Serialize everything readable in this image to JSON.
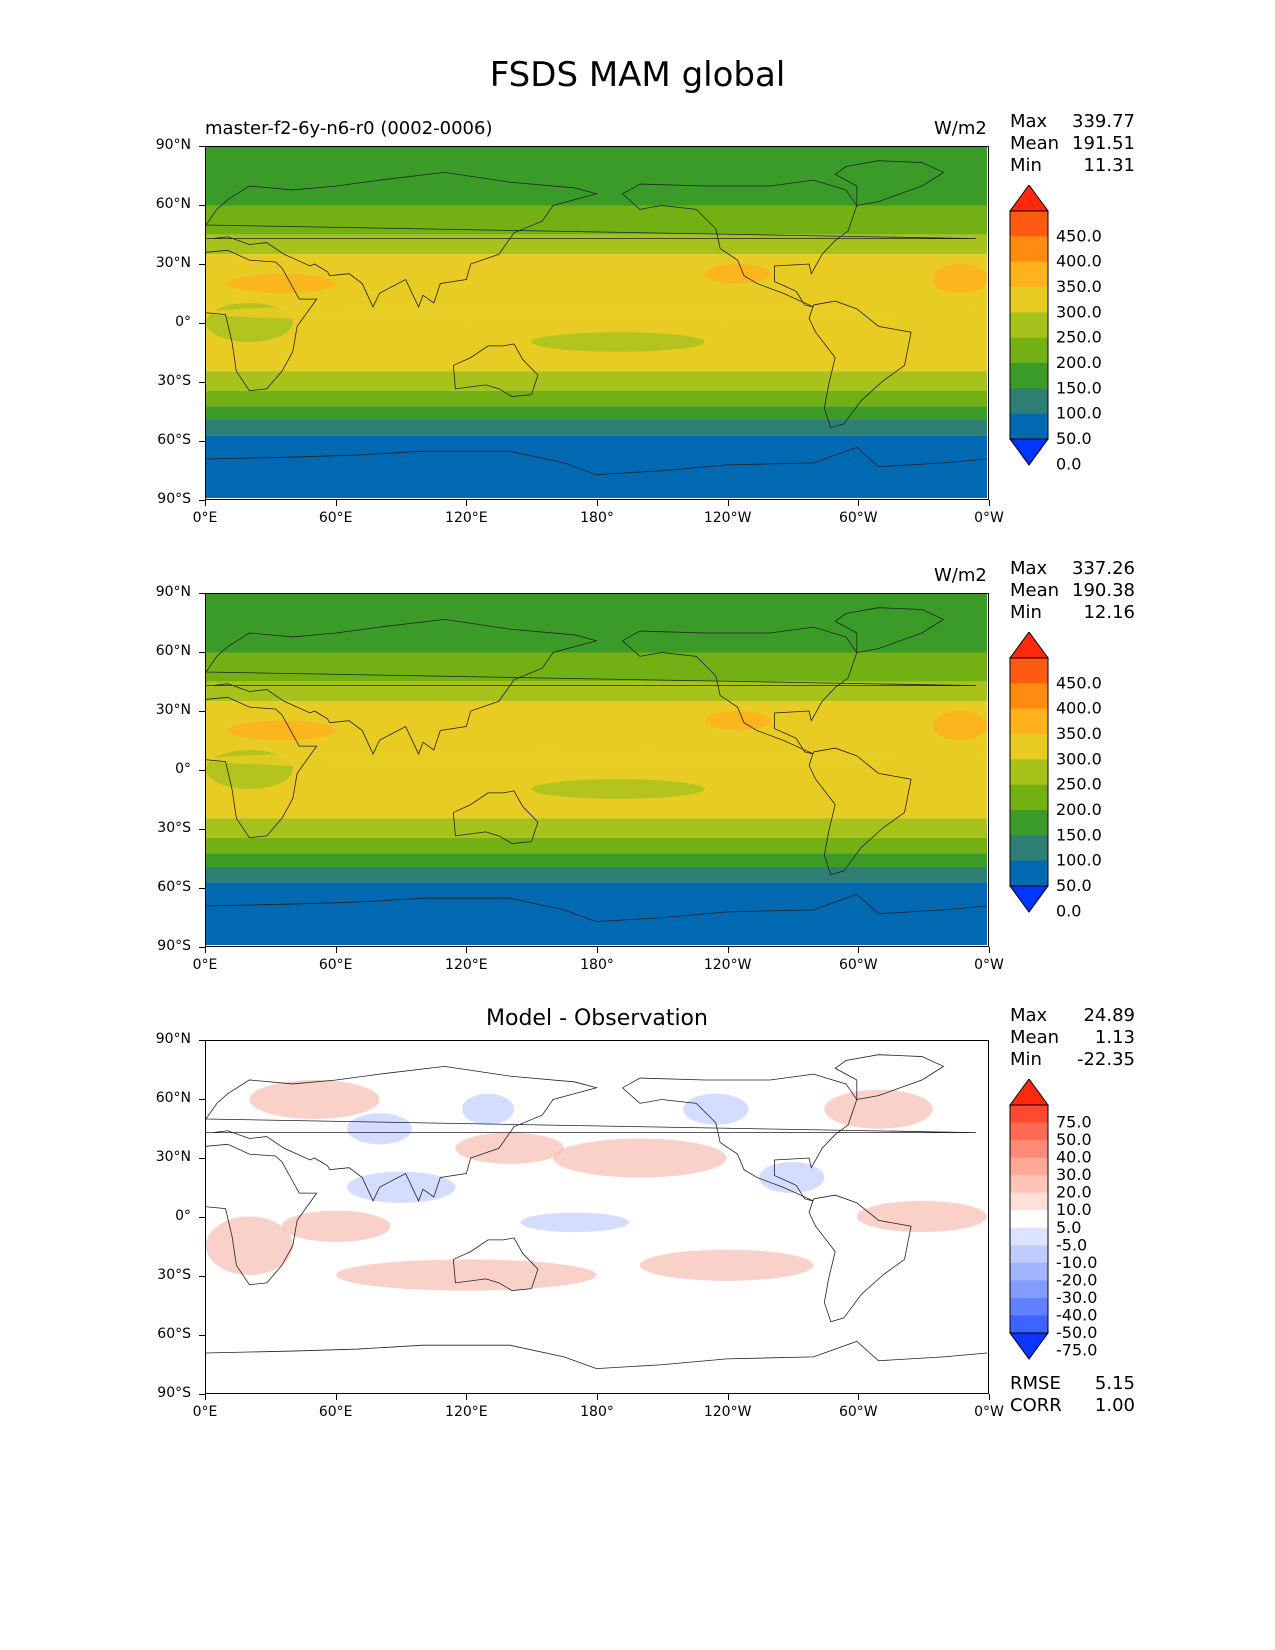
{
  "title": "FSDS MAM global",
  "panels": [
    {
      "id": "test",
      "label_left": "master-f2-6y-n6-r0 (0002-0006)",
      "label_right": "W/m2",
      "stats": {
        "max_label": "Max",
        "max": "339.77",
        "mean_label": "Mean",
        "mean": "191.51",
        "min_label": "Min",
        "min": "11.31"
      },
      "colorbar": {
        "levels": [
          "450.0",
          "400.0",
          "350.0",
          "300.0",
          "250.0",
          "200.0",
          "150.0",
          "100.0",
          "50.0",
          "0.0"
        ],
        "colors": [
          "#ff2a0e",
          "#ff5a12",
          "#ff8a10",
          "#ffb21c",
          "#e8cc24",
          "#a8c21c",
          "#72b014",
          "#3b9b28",
          "#2e7e73",
          "#0069b2",
          "#0035ff"
        ]
      }
    },
    {
      "id": "ref",
      "label_left": "",
      "label_right": "W/m2",
      "stats": {
        "max_label": "Max",
        "max": "337.26",
        "mean_label": "Mean",
        "mean": "190.38",
        "min_label": "Min",
        "min": "12.16"
      },
      "colorbar": {
        "levels": [
          "450.0",
          "400.0",
          "350.0",
          "300.0",
          "250.0",
          "200.0",
          "150.0",
          "100.0",
          "50.0",
          "0.0"
        ],
        "colors": [
          "#ff2a0e",
          "#ff5a12",
          "#ff8a10",
          "#ffb21c",
          "#e8cc24",
          "#a8c21c",
          "#72b014",
          "#3b9b28",
          "#2e7e73",
          "#0069b2",
          "#0035ff"
        ]
      }
    },
    {
      "id": "diff",
      "title": "Model - Observation",
      "stats": {
        "max_label": "Max",
        "max": "24.89",
        "mean_label": "Mean",
        "mean": "1.13",
        "min_label": "Min",
        "min": "-22.35"
      },
      "extra": {
        "rmse_label": "RMSE",
        "rmse": "5.15",
        "corr_label": "CORR",
        "corr": "1.00"
      },
      "colorbar": {
        "levels": [
          "75.0",
          "50.0",
          "40.0",
          "30.0",
          "20.0",
          "10.0",
          "5.0",
          "-5.0",
          "-10.0",
          "-20.0",
          "-30.0",
          "-40.0",
          "-50.0",
          "-75.0"
        ],
        "colors": [
          "#ff2a0e",
          "#ff4a30",
          "#ff6a55",
          "#ff8a78",
          "#ffa898",
          "#ffc4b8",
          "#ffe0d8",
          "#ffffff",
          "#dde4ff",
          "#c0ccff",
          "#a2b4ff",
          "#829cff",
          "#5f80ff",
          "#3c62ff",
          "#0a36ff"
        ]
      }
    }
  ],
  "axes": {
    "x_ticks": [
      "0°E",
      "60°E",
      "120°E",
      "180°",
      "120°W",
      "60°W",
      "0°W"
    ],
    "y_ticks": [
      "90°N",
      "60°N",
      "30°N",
      "0°",
      "30°S",
      "60°S",
      "90°S"
    ]
  },
  "map_colors": {
    "band_arctic": "#3b9b28",
    "band_north_mid": "#72b014",
    "band_north_sub": "#a8c21c",
    "band_tropics": "#e8cc24",
    "band_south_sub": "#a8c21c",
    "band_south_mid": "#72b014",
    "band_south_high": "#3b9b28",
    "band_southern_ocean": "#2e7e73",
    "band_antarctic": "#0069b2",
    "hotspot": "#ffb21c",
    "coastline": "#222222",
    "diff_pos": "#f7c2b6",
    "diff_neg": "#c6d0ff"
  }
}
